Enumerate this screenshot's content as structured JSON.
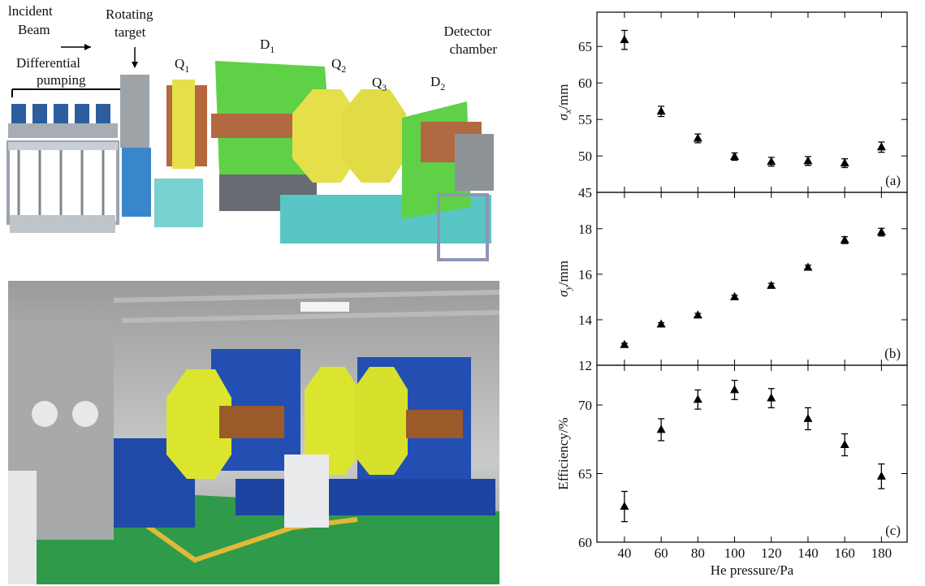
{
  "diagram": {
    "labels": {
      "incident": [
        "lncident",
        "Beam"
      ],
      "rotating": [
        "Rotating",
        "target"
      ],
      "pumping": [
        "Differential",
        "pumping"
      ],
      "q1": {
        "text": "Q",
        "sub": "1"
      },
      "d1": {
        "text": "D",
        "sub": "1"
      },
      "q2": {
        "text": "Q",
        "sub": "2"
      },
      "q3": {
        "text": "Q",
        "sub": "3"
      },
      "d2": {
        "text": "D",
        "sub": "2"
      },
      "detector": [
        "Detector",
        "chamber"
      ]
    }
  },
  "chart_data": [
    {
      "type": "scatter",
      "panel_label": "(a)",
      "ylabel": [
        "σ",
        "x",
        "/mm"
      ],
      "x": [
        40,
        60,
        80,
        100,
        120,
        140,
        160,
        180
      ],
      "values": [
        65.9,
        56.1,
        52.4,
        49.9,
        49.2,
        49.3,
        49.0,
        51.2
      ],
      "errors": [
        1.3,
        0.7,
        0.6,
        0.5,
        0.6,
        0.6,
        0.6,
        0.7
      ],
      "color": "#000000",
      "marker": "triangle",
      "xlim": [
        25,
        194
      ],
      "xticks": [
        40,
        60,
        80,
        100,
        120,
        140,
        160,
        180
      ],
      "show_xticklabels": false,
      "ylim": [
        45,
        69.7
      ],
      "yticks": [
        45,
        50,
        55,
        60,
        65
      ]
    },
    {
      "type": "scatter",
      "panel_label": "(b)",
      "ylabel": [
        "σ",
        "y",
        "/mm"
      ],
      "x": [
        40,
        60,
        80,
        100,
        120,
        140,
        160,
        180
      ],
      "values": [
        12.9,
        13.8,
        14.2,
        15.0,
        15.5,
        16.3,
        17.5,
        17.85
      ],
      "errors": [
        0.07,
        0.07,
        0.08,
        0.08,
        0.1,
        0.1,
        0.15,
        0.17
      ],
      "color": "#000000",
      "marker": "triangle",
      "xlim": [
        25,
        194
      ],
      "xticks": [
        40,
        60,
        80,
        100,
        120,
        140,
        160,
        180
      ],
      "show_xticklabels": false,
      "ylim": [
        12,
        19.6
      ],
      "yticks": [
        12,
        14,
        16,
        18
      ]
    },
    {
      "type": "scatter",
      "panel_label": "(c)",
      "ylabel": [
        "Efficiency/%"
      ],
      "xlabel": "He pressure/Pa",
      "x": [
        40,
        60,
        80,
        100,
        120,
        140,
        160,
        180
      ],
      "values": [
        62.6,
        68.2,
        70.4,
        71.1,
        70.5,
        69.0,
        67.1,
        64.8
      ],
      "errors": [
        1.1,
        0.8,
        0.7,
        0.7,
        0.7,
        0.8,
        0.8,
        0.9
      ],
      "color": "#000000",
      "marker": "triangle",
      "xlim": [
        25,
        194
      ],
      "xticks": [
        40,
        60,
        80,
        100,
        120,
        140,
        160,
        180
      ],
      "show_xticklabels": true,
      "ylim": [
        60,
        72.9
      ],
      "yticks": [
        60,
        65,
        70
      ]
    }
  ]
}
